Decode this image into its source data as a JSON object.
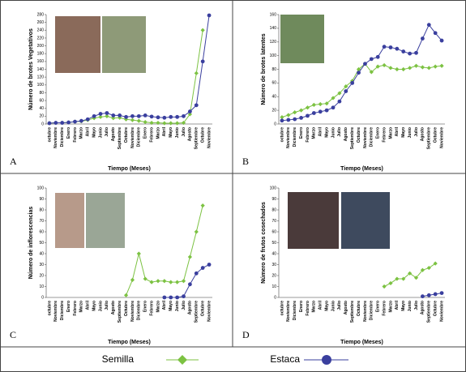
{
  "chart_data": [
    {
      "type": "line",
      "label": "A",
      "xlabel": "Tiempo (Meses)",
      "ylabel": "Número de brotes Vegetativos",
      "categories": [
        "octubre",
        "Noviembre",
        "Diciembre",
        "Enero",
        "Febrero",
        "Marzo",
        "Abril",
        "Mayo",
        "Junio",
        "Julio",
        "Agosto",
        "Septiembre",
        "Octubre",
        "Noviembre",
        "Diciembre",
        "Enero",
        "Febrero",
        "Marzo",
        "Abril",
        "Mayo",
        "Junio",
        "Julio",
        "Agosto",
        "Septiembre",
        "Octubre",
        "Noviembre"
      ],
      "ylim": [
        0,
        280
      ],
      "yticks": [
        0,
        20,
        40,
        60,
        80,
        100,
        120,
        140,
        160,
        180,
        200,
        220,
        240,
        260,
        280
      ],
      "series": [
        {
          "name": "Semilla",
          "color": "#7cc242",
          "marker": "diamond",
          "values": [
            2,
            3,
            3,
            4,
            6,
            7,
            10,
            15,
            18,
            20,
            15,
            16,
            12,
            10,
            8,
            5,
            3,
            3,
            2,
            2,
            2,
            3,
            25,
            130,
            240,
            null
          ]
        },
        {
          "name": "Estaca",
          "color": "#3a3f9e",
          "marker": "circle",
          "values": [
            2,
            3,
            3,
            4,
            6,
            8,
            12,
            20,
            26,
            28,
            22,
            22,
            18,
            20,
            20,
            22,
            19,
            17,
            16,
            18,
            18,
            20,
            32,
            48,
            160,
            278
          ]
        }
      ]
    },
    {
      "type": "line",
      "label": "B",
      "xlabel": "Tiempo (Meses)",
      "ylabel": "Número de brotes latentes",
      "categories": [
        "octubre",
        "Noviembre",
        "Diciembre",
        "Enero",
        "Febrero",
        "Marzo",
        "Abril",
        "Mayo",
        "Junio",
        "Julio",
        "Agosto",
        "Septiembre",
        "Octubre",
        "Noviembre",
        "Diciembre",
        "Enero",
        "Febrero",
        "Marzo",
        "Abril",
        "Mayo",
        "Junio",
        "Julio",
        "Agosto",
        "Septiembre",
        "Octubre",
        "Noviembre"
      ],
      "ylim": [
        0,
        160
      ],
      "yticks": [
        0,
        20,
        40,
        60,
        80,
        100,
        120,
        140,
        160
      ],
      "series": [
        {
          "name": "Semilla",
          "color": "#7cc242",
          "marker": "diamond",
          "values": [
            10,
            13,
            17,
            20,
            24,
            28,
            29,
            30,
            38,
            45,
            55,
            63,
            80,
            88,
            76,
            84,
            86,
            82,
            80,
            80,
            82,
            85,
            83,
            82,
            84,
            85
          ]
        },
        {
          "name": "Estaca",
          "color": "#3a3f9e",
          "marker": "circle",
          "values": [
            5,
            6,
            7,
            9,
            12,
            16,
            18,
            20,
            24,
            33,
            48,
            60,
            75,
            88,
            95,
            98,
            113,
            112,
            110,
            106,
            103,
            104,
            125,
            145,
            133,
            122
          ]
        }
      ]
    },
    {
      "type": "line",
      "label": "C",
      "xlabel": "Tiempo (Meses)",
      "ylabel": "Número de inflorescencias",
      "categories": [
        "octubre",
        "Noviembre",
        "Diciembre",
        "Enero",
        "Febrero",
        "Marzo",
        "Abril",
        "Mayo",
        "Junio",
        "Julio",
        "Agosto",
        "Septiembre",
        "Octubre",
        "Noviembre",
        "Diciembre",
        "Enero",
        "Febrero",
        "Marzo",
        "Abril",
        "Mayo",
        "Junio",
        "Julio",
        "Agosto",
        "Septiembre",
        "Octubre",
        "Noviembre"
      ],
      "ylim": [
        0,
        100
      ],
      "yticks": [
        0,
        10,
        20,
        30,
        40,
        50,
        60,
        70,
        80,
        90,
        100
      ],
      "series": [
        {
          "name": "Semilla",
          "color": "#7cc242",
          "marker": "diamond",
          "values": [
            null,
            null,
            null,
            null,
            null,
            null,
            null,
            null,
            null,
            null,
            null,
            null,
            2,
            16,
            40,
            17,
            14,
            15,
            15,
            14,
            14,
            15,
            37,
            60,
            84,
            null
          ]
        },
        {
          "name": "Estaca",
          "color": "#3a3f9e",
          "marker": "circle",
          "values": [
            null,
            null,
            null,
            null,
            null,
            null,
            null,
            null,
            null,
            null,
            null,
            null,
            null,
            null,
            null,
            null,
            null,
            null,
            0,
            0,
            0,
            1,
            12,
            22,
            27,
            30
          ]
        }
      ]
    },
    {
      "type": "line",
      "label": "D",
      "xlabel": "Tiempo (Meses)",
      "ylabel": "Número de frutos cosechados",
      "categories": [
        "octubre",
        "Noviembre",
        "Diciembre",
        "Enero",
        "Febrero",
        "Marzo",
        "Abril",
        "Mayo",
        "Junio",
        "Julio",
        "Agosto",
        "Septiembre",
        "Octubre",
        "Noviembre",
        "Diciembre",
        "Enero",
        "Febrero",
        "Marzo",
        "Abril",
        "Mayo",
        "Junio",
        "Julio",
        "Agosto",
        "Septiembre",
        "Octubre",
        "Noviembre"
      ],
      "ylim": [
        0,
        100
      ],
      "yticks": [
        0,
        10,
        20,
        30,
        40,
        50,
        60,
        70,
        80,
        90,
        100
      ],
      "series": [
        {
          "name": "Semilla",
          "color": "#7cc242",
          "marker": "diamond",
          "values": [
            null,
            null,
            null,
            null,
            null,
            null,
            null,
            null,
            null,
            null,
            null,
            null,
            null,
            null,
            null,
            null,
            10,
            13,
            17,
            17,
            22,
            18,
            25,
            27,
            31,
            null
          ]
        },
        {
          "name": "Estaca",
          "color": "#3a3f9e",
          "marker": "circle",
          "values": [
            null,
            null,
            null,
            null,
            null,
            null,
            null,
            null,
            null,
            null,
            null,
            null,
            null,
            null,
            null,
            null,
            null,
            null,
            null,
            null,
            null,
            null,
            1,
            2,
            3,
            4
          ]
        }
      ]
    }
  ]
}
